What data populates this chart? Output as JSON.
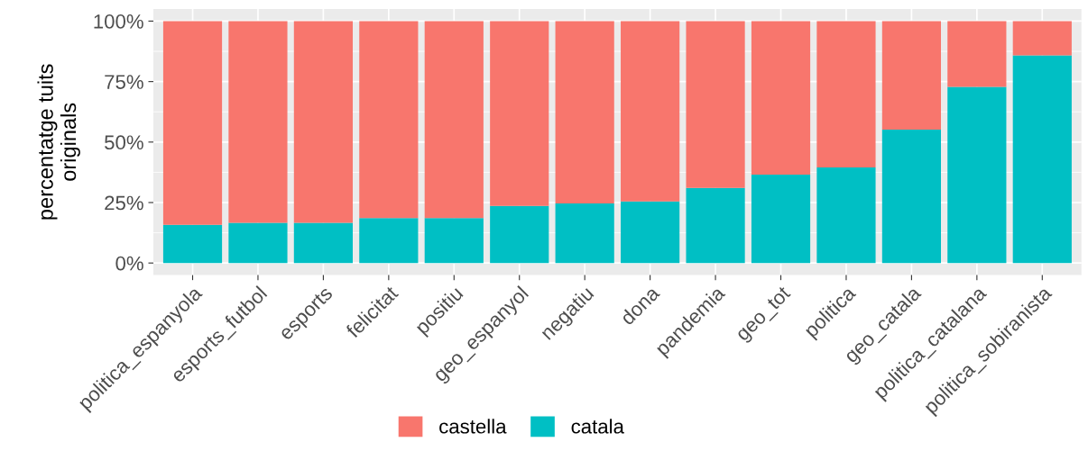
{
  "chart_data": {
    "type": "bar",
    "stacked": true,
    "ylabel": "percentatge tuits\noriginals",
    "categories": [
      "politica_espanyola",
      "esports_futbol",
      "esports",
      "felicitat",
      "positiu",
      "geo_espanyol",
      "negatiu",
      "dona",
      "pandemia",
      "geo_tot",
      "politica",
      "geo_catala",
      "politica_catalana",
      "politica_sobiranista"
    ],
    "series": [
      {
        "name": "catala",
        "color": "#00bfc4",
        "values": [
          15.8,
          16.6,
          16.6,
          18.6,
          18.6,
          23.6,
          24.6,
          25.5,
          31.0,
          36.5,
          39.5,
          55.1,
          72.8,
          85.8
        ]
      },
      {
        "name": "castella",
        "color": "#f8766d",
        "values": [
          84.2,
          83.4,
          83.4,
          81.4,
          81.4,
          76.4,
          75.4,
          74.5,
          69.0,
          63.5,
          60.5,
          44.9,
          27.2,
          14.2
        ]
      }
    ],
    "ylim": [
      -5,
      105
    ],
    "yticks": [
      {
        "value": 0,
        "label": "0%"
      },
      {
        "value": 25,
        "label": "25%"
      },
      {
        "value": 50,
        "label": "50%"
      },
      {
        "value": 75,
        "label": "75%"
      },
      {
        "value": 100,
        "label": "100%"
      }
    ],
    "grid": true,
    "legend": "bottom"
  }
}
